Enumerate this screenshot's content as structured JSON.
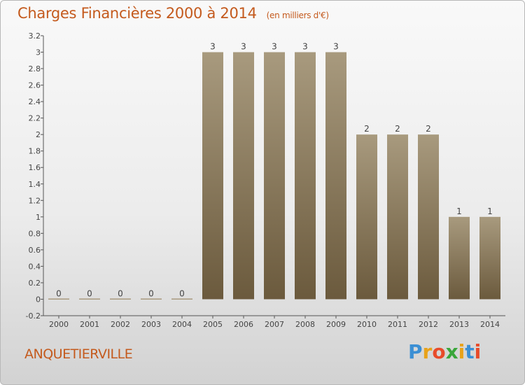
{
  "title": "Charges Financières 2000 à 2014",
  "subtitle": "(en milliers d'€)",
  "commune": "ANQUETIERVILLE",
  "logo": {
    "letters": [
      "P",
      "r",
      "o",
      "x",
      "i",
      "t",
      "i"
    ],
    "colors": [
      "#3b8fd4",
      "#e8a21a",
      "#e84b2a",
      "#3aa63a",
      "#e8a21a",
      "#3b8fd4",
      "#e84b2a"
    ]
  },
  "colors": {
    "title": "#c45a1d",
    "bar_top": "#a89a7e",
    "bar_bottom": "#6b5a3d"
  },
  "chart_data": {
    "type": "bar",
    "categories": [
      "2000",
      "2001",
      "2002",
      "2003",
      "2004",
      "2005",
      "2006",
      "2007",
      "2008",
      "2009",
      "2010",
      "2011",
      "2012",
      "2013",
      "2014"
    ],
    "values": [
      0,
      0,
      0,
      0,
      0,
      3,
      3,
      3,
      3,
      3,
      2,
      2,
      2,
      1,
      1
    ],
    "data_labels": [
      "0",
      "0",
      "0",
      "0",
      "0",
      "3",
      "3",
      "3",
      "3",
      "3",
      "2",
      "2",
      "2",
      "1",
      "1"
    ],
    "yticks": [
      "-0.2",
      "0",
      "0.2",
      "0.4",
      "0.6",
      "0.8",
      "1",
      "1.2",
      "1.4",
      "1.6",
      "1.8",
      "2",
      "2.2",
      "2.4",
      "2.6",
      "2.8",
      "3",
      "3.2"
    ],
    "ylim": [
      -0.2,
      3.2
    ],
    "grid": false
  }
}
